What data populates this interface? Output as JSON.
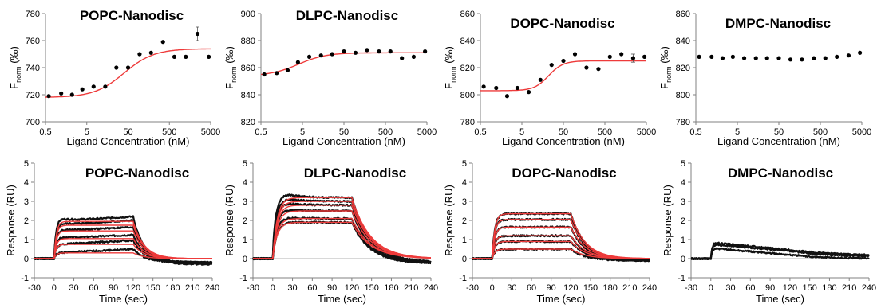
{
  "colors": {
    "points": "#000000",
    "fit": "#ee3b3b",
    "trace": "#111111",
    "axis": "#808080",
    "zero": "#b0b0b0"
  },
  "chart_data": [
    {
      "type": "scatter",
      "title": "POPC-Nanodisc",
      "xlabel": "Ligand Concentration (nM)",
      "ylabel": {
        "main": "F",
        "sub": "norm",
        "unit": " (‰)"
      },
      "xscale": "log",
      "xticks": [
        0.5,
        5,
        50,
        500,
        5000
      ],
      "xtick_labels": [
        "0.5",
        "5",
        "50",
        "500",
        "5000"
      ],
      "xlim": [
        0.5,
        5000
      ],
      "ylim": [
        700,
        780
      ],
      "yticks": [
        700,
        720,
        740,
        760,
        780
      ],
      "x": [
        0.6,
        1.2,
        2.2,
        3.9,
        7.3,
        14,
        26,
        50,
        95,
        180,
        350,
        660,
        1250,
        2400,
        4500
      ],
      "y": [
        719,
        721,
        720,
        724,
        726,
        726,
        740,
        740,
        750,
        751,
        759,
        748,
        748,
        765,
        748
      ],
      "error": [
        0,
        0,
        0,
        0,
        0,
        0,
        0,
        0,
        0,
        0,
        0,
        0,
        0,
        5,
        0
      ],
      "fit": {
        "bottom": 718,
        "top": 754,
        "ec50": 40,
        "hill": 1.2
      }
    },
    {
      "type": "scatter",
      "title": "DLPC-Nanodisc",
      "xlabel": "Ligand Concentration (nM)",
      "ylabel": {
        "main": "F",
        "sub": "norm",
        "unit": " (‰)"
      },
      "xscale": "log",
      "xticks": [
        0.5,
        5,
        50,
        500,
        5000
      ],
      "xtick_labels": [
        "0.5",
        "5",
        "50",
        "500",
        "5000"
      ],
      "xlim": [
        0.5,
        5000
      ],
      "ylim": [
        820,
        900
      ],
      "yticks": [
        820,
        840,
        860,
        880,
        900
      ],
      "x": [
        0.6,
        1.2,
        2.2,
        3.9,
        7.3,
        14,
        26,
        50,
        95,
        180,
        350,
        660,
        1250,
        2400,
        4500
      ],
      "y": [
        855,
        856,
        858,
        864,
        868,
        869,
        870,
        872,
        871,
        873,
        872,
        872,
        867,
        868,
        872
      ],
      "error": [
        0,
        0,
        0,
        0,
        0,
        0,
        0,
        0,
        0,
        0,
        0,
        0,
        0,
        0,
        0
      ],
      "fit": {
        "bottom": 854,
        "top": 871,
        "ec50": 4,
        "hill": 1.3
      }
    },
    {
      "type": "scatter",
      "title": "DOPC-Nanodisc",
      "xlabel": "Ligand Concentration (nM)",
      "ylabel": {
        "main": "F",
        "sub": "norm",
        "unit": " (‰)"
      },
      "xscale": "log",
      "xticks": [
        0.5,
        5,
        50,
        500,
        5000
      ],
      "xtick_labels": [
        "0.5",
        "5",
        "50",
        "500",
        "5000"
      ],
      "xlim": [
        0.5,
        5000
      ],
      "ylim": [
        780,
        860
      ],
      "yticks": [
        780,
        800,
        820,
        840,
        860
      ],
      "x": [
        0.6,
        1.2,
        2.2,
        3.9,
        7.3,
        14,
        26,
        50,
        95,
        180,
        350,
        660,
        1250,
        2400,
        4500
      ],
      "y": [
        806,
        805,
        799,
        805,
        802,
        811,
        822,
        825,
        830,
        820,
        819,
        828,
        830,
        827,
        828
      ],
      "error": [
        0,
        0,
        0,
        0,
        0,
        0,
        0,
        0,
        0,
        0,
        0,
        0,
        0,
        3,
        0
      ],
      "fit": {
        "bottom": 803,
        "top": 825,
        "ec50": 22,
        "hill": 2.5
      }
    },
    {
      "type": "scatter",
      "title": "DMPC-Nanodisc",
      "xlabel": "Ligand Concentration (nM)",
      "ylabel": {
        "main": "F",
        "sub": "norm",
        "unit": " (‰)"
      },
      "xscale": "log",
      "xticks": [
        0.5,
        5,
        50,
        500,
        5000
      ],
      "xtick_labels": [
        "0.5",
        "5",
        "50",
        "500",
        "5000"
      ],
      "xlim": [
        0.5,
        5000
      ],
      "ylim": [
        780,
        860
      ],
      "yticks": [
        780,
        800,
        820,
        840,
        860
      ],
      "x": [
        0.6,
        1.2,
        2.2,
        3.9,
        7.3,
        14,
        26,
        50,
        95,
        180,
        350,
        660,
        1250,
        2400,
        4500
      ],
      "y": [
        828,
        828,
        827,
        828,
        827,
        827,
        827,
        827,
        826,
        826,
        827,
        827,
        828,
        829,
        831
      ],
      "error": [
        0,
        0,
        0,
        0,
        0,
        0,
        0,
        0,
        0,
        0,
        0,
        0,
        0,
        0,
        0
      ],
      "fit": null
    },
    {
      "type": "line",
      "title": "POPC-Nanodisc",
      "xlabel": "Time (sec)",
      "ylabel": "Response (RU)",
      "xlim": [
        -30,
        240
      ],
      "xticks": [
        -30,
        0,
        30,
        60,
        90,
        120,
        150,
        180,
        210,
        240
      ],
      "xtick_labels": [
        "-30",
        "0",
        "30",
        "60",
        "90",
        "120",
        "150",
        "180",
        "210",
        "240"
      ],
      "ylim": [
        -1,
        5
      ],
      "yticks": [
        -1,
        0,
        1,
        2,
        3,
        4,
        5
      ],
      "inject_start": 0,
      "inject_end": 120,
      "series": [
        {
          "rmax": 0.3,
          "ka": 0.3,
          "kd": 0.06,
          "peak": 0.0,
          "drift": 0.2,
          "baseline": -0.2
        },
        {
          "rmax": 0.75,
          "ka": 0.3,
          "kd": 0.06,
          "peak": 0.0,
          "drift": 0.2,
          "baseline": -0.2
        },
        {
          "rmax": 1.05,
          "ka": 0.3,
          "kd": 0.06,
          "peak": 0.1,
          "drift": 0.2,
          "baseline": -0.2
        },
        {
          "rmax": 1.45,
          "ka": 0.3,
          "kd": 0.06,
          "peak": 0.1,
          "drift": 0.2,
          "baseline": -0.2
        },
        {
          "rmax": 1.75,
          "ka": 0.3,
          "kd": 0.06,
          "peak": 0.15,
          "drift": 0.25,
          "baseline": -0.25
        },
        {
          "rmax": 1.95,
          "ka": 0.3,
          "kd": 0.06,
          "peak": 0.25,
          "drift": 0.25,
          "baseline": -0.3
        }
      ],
      "fit": true
    },
    {
      "type": "line",
      "title": "DLPC-Nanodisc",
      "xlabel": "Time (sec)",
      "ylabel": "Response (RU)",
      "xlim": [
        -30,
        240
      ],
      "xticks": [
        -30,
        0,
        30,
        60,
        90,
        120,
        150,
        180,
        210,
        240
      ],
      "xtick_labels": [
        "-30",
        "0",
        "30",
        "60",
        "90",
        "120",
        "150",
        "180",
        "210",
        "240"
      ],
      "ylim": [
        -1,
        5
      ],
      "yticks": [
        -1,
        0,
        1,
        2,
        3,
        4,
        5
      ],
      "inject_start": 0,
      "inject_end": 120,
      "series": [
        {
          "rmax": 1.9,
          "ka": 0.15,
          "kd": 0.035,
          "peak": 0.1,
          "drift": 0.0,
          "baseline": -0.25
        },
        {
          "rmax": 2.1,
          "ka": 0.15,
          "kd": 0.035,
          "peak": 0.25,
          "drift": 0.0,
          "baseline": -0.25
        },
        {
          "rmax": 2.5,
          "ka": 0.15,
          "kd": 0.035,
          "peak": 0.35,
          "drift": 0.0,
          "baseline": -0.25
        },
        {
          "rmax": 2.8,
          "ka": 0.15,
          "kd": 0.035,
          "peak": 0.5,
          "drift": 0.0,
          "baseline": -0.2
        },
        {
          "rmax": 3.0,
          "ka": 0.15,
          "kd": 0.035,
          "peak": 0.6,
          "drift": 0.0,
          "baseline": -0.2
        },
        {
          "rmax": 3.2,
          "ka": 0.15,
          "kd": 0.035,
          "peak": 0.8,
          "drift": 0.0,
          "baseline": -0.2
        }
      ],
      "fit": true
    },
    {
      "type": "line",
      "title": "DOPC-Nanodisc",
      "xlabel": "Time (sec)",
      "ylabel": "Response (RU)",
      "xlim": [
        -30,
        240
      ],
      "xticks": [
        -30,
        0,
        30,
        60,
        90,
        120,
        150,
        180,
        210,
        240
      ],
      "xtick_labels": [
        "-30",
        "0",
        "30",
        "60",
        "90",
        "120",
        "150",
        "180",
        "210",
        "240"
      ],
      "ylim": [
        -1,
        5
      ],
      "yticks": [
        -1,
        0,
        1,
        2,
        3,
        4,
        5
      ],
      "inject_start": 0,
      "inject_end": 120,
      "series": [
        {
          "rmax": 0.5,
          "ka": 0.25,
          "kd": 0.045,
          "peak": 0.0,
          "drift": 0.0,
          "baseline": -0.1
        },
        {
          "rmax": 0.9,
          "ka": 0.25,
          "kd": 0.045,
          "peak": 0.0,
          "drift": 0.0,
          "baseline": -0.1
        },
        {
          "rmax": 1.2,
          "ka": 0.25,
          "kd": 0.045,
          "peak": 0.0,
          "drift": 0.0,
          "baseline": -0.1
        },
        {
          "rmax": 1.65,
          "ka": 0.25,
          "kd": 0.045,
          "peak": 0.0,
          "drift": 0.0,
          "baseline": -0.1
        },
        {
          "rmax": 2.05,
          "ka": 0.25,
          "kd": 0.045,
          "peak": 0.0,
          "drift": 0.0,
          "baseline": -0.1
        },
        {
          "rmax": 2.35,
          "ka": 0.25,
          "kd": 0.045,
          "peak": 0.0,
          "drift": 0.0,
          "baseline": -0.1
        }
      ],
      "fit": true
    },
    {
      "type": "line",
      "title": "DMPC-Nanodisc",
      "xlabel": "Time (sec)",
      "ylabel": "Response (RU)",
      "xlim": [
        -30,
        240
      ],
      "xticks": [
        -30,
        0,
        30,
        60,
        90,
        120,
        150,
        180,
        210,
        240
      ],
      "xtick_labels": [
        "-30",
        "0",
        "30",
        "60",
        "90",
        "120",
        "150",
        "180",
        "210",
        "240"
      ],
      "ylim": [
        -1,
        5
      ],
      "yticks": [
        -1,
        0,
        1,
        2,
        3,
        4,
        5
      ],
      "inject_start": 0,
      "inject_end": 120,
      "series": [
        {
          "rmax": 0.55,
          "ka": 0.5,
          "kd": 0.02,
          "peak": 0.0,
          "drift": -0.35,
          "baseline": 0.0
        },
        {
          "rmax": 0.75,
          "ka": 0.5,
          "kd": 0.02,
          "peak": 0.0,
          "drift": -0.35,
          "baseline": 0.1
        },
        {
          "rmax": 0.85,
          "ka": 0.5,
          "kd": 0.02,
          "peak": 0.0,
          "drift": -0.4,
          "baseline": 0.15
        }
      ],
      "fit": false
    }
  ]
}
